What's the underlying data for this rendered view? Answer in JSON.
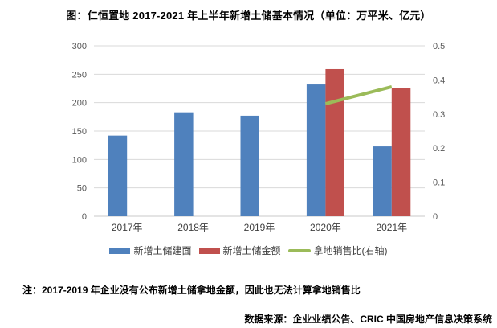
{
  "page": {
    "title": "图：仁恒置地 2017-2021 年上半年新增土储基本情况（单位：万平米、亿元）",
    "note": "注：2017-2019 年企业没有公布新增土储拿地金额，因此也无法计算拿地销售比",
    "source": "数据来源：企业业绩公告、CRIC 中国房地产信息决策系统"
  },
  "chart_data": {
    "type": "bar",
    "subtype": "grouped bars + line, dual y-axis",
    "title": "图：仁恒置地 2017-2021 年上半年新增土储基本情况（单位：万平米、亿元）",
    "categories": [
      "2017年",
      "2018年",
      "2019年",
      "2020年",
      "2021年"
    ],
    "series": [
      {
        "id": "new-land-gfa",
        "name": "新增土储建面",
        "type": "bar",
        "axis": "left",
        "color": "#4F81BD",
        "values": [
          142,
          183,
          177,
          232,
          123
        ]
      },
      {
        "id": "new-land-amount",
        "name": "新增土储金额",
        "type": "bar",
        "axis": "left",
        "color": "#C0504D",
        "values": [
          null,
          null,
          null,
          259,
          226
        ]
      },
      {
        "id": "land-sales-ratio",
        "name": "拿地销售比(右轴)",
        "type": "line",
        "axis": "right",
        "color": "#9BBB59",
        "values": [
          null,
          null,
          null,
          0.33,
          0.38
        ]
      }
    ],
    "left_axis": {
      "min": 0,
      "max": 300,
      "step": 50,
      "tick_labels": [
        "0",
        "50",
        "100",
        "150",
        "200",
        "250",
        "300"
      ]
    },
    "right_axis": {
      "min": 0,
      "max": 0.5,
      "step": 0.1,
      "tick_labels": [
        "0",
        "0.1",
        "0.2",
        "0.3",
        "0.4",
        "0.5"
      ]
    },
    "grid": true,
    "legend_position": "bottom",
    "styles": {
      "gridline": "#D9D9D9",
      "axis_line": "#C9C9C9",
      "tick_text": "#595959",
      "xlabel_text": "#3f3f3f"
    }
  }
}
